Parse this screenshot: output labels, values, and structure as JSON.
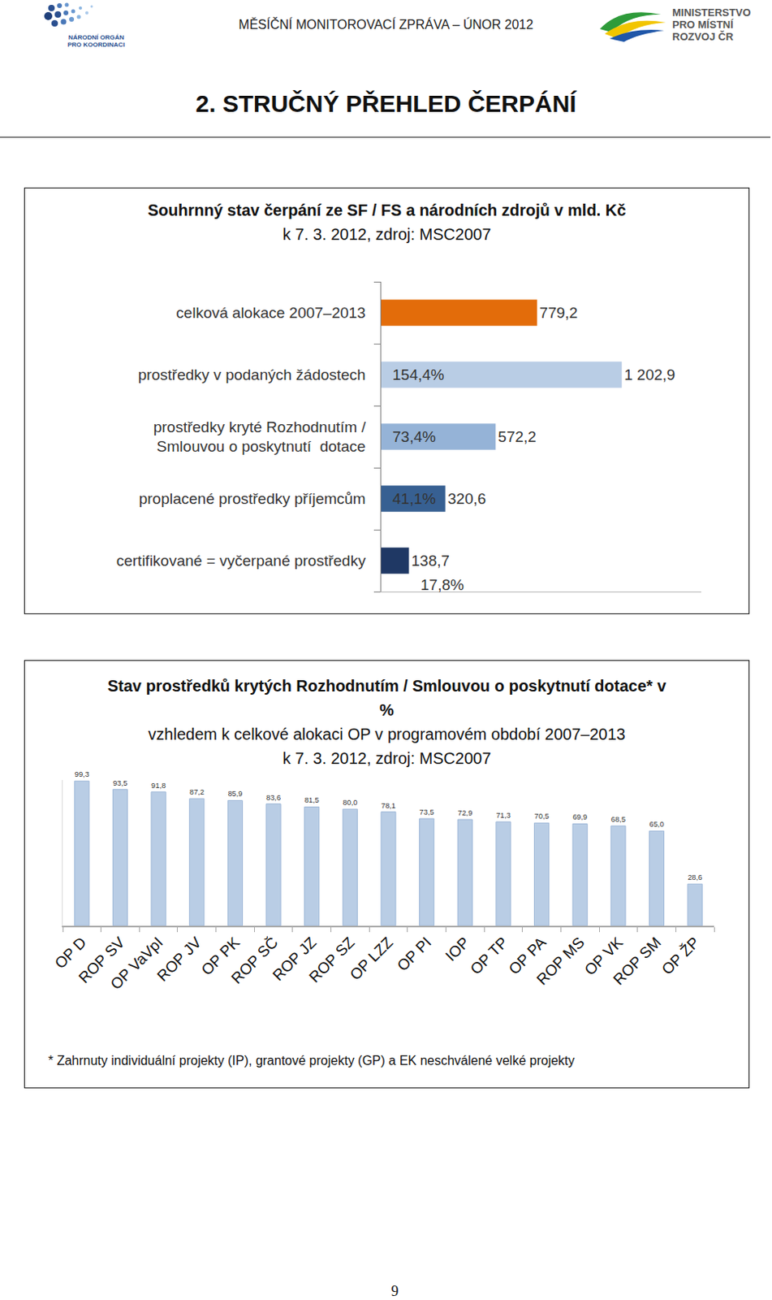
{
  "header": {
    "left_logo": "NÁRODNÍ ORGÁN\nPRO KOORDINACI",
    "title": "MĚSÍČNÍ MONITOROVACÍ ZPRÁVA – ÚNOR 2012",
    "right_logo": "MINISTERSTVO\nPRO MÍSTNÍ\nROZVOJ ČR"
  },
  "heading": "2. STRUČNÝ PŘEHLED ČERPÁNÍ",
  "chart_data": [
    {
      "type": "bar",
      "orientation": "horizontal",
      "title": "Souhrnný stav čerpání ze SF / FS a národních zdrojů v mld. Kč",
      "subtitle": "k 7. 3. 2012, zdroj: MSC2007",
      "categories": [
        "celková alokace 2007–2013",
        "prostředky v podaných žádostech",
        "prostředky kryté Rozhodnutím /\nSmlouvou o poskytnutí  dotace",
        "proplacené prostředky příjemcům",
        "certifikované = vyčerpané prostředky"
      ],
      "values": [
        779.2,
        1202.9,
        572.2,
        320.6,
        138.7
      ],
      "value_labels": [
        "779,2",
        "1 202,9",
        "572,2",
        "320,6",
        "138,7"
      ],
      "share_labels": [
        null,
        "154,4%",
        "73,4%",
        "41,1%",
        "17,8%"
      ],
      "colors": [
        "#E36C0A",
        "#B9CDE5",
        "#95B3D7",
        "#376092",
        "#1F3864"
      ],
      "xlim": [
        0,
        1600
      ],
      "data_labels": true,
      "tick_labels": "y",
      "grid": false
    },
    {
      "type": "bar",
      "title": "Stav prostředků krytých Rozhodnutím / Smlouvou o poskytnutí dotace* v %",
      "subtitle": [
        "vzhledem k celkové alokaci OP v programovém období 2007–2013",
        "k 7. 3. 2012, zdroj: MSC2007"
      ],
      "categories": [
        "OP D",
        "ROP SV",
        "OP VaVpI",
        "ROP JV",
        "OP PK",
        "ROP SČ",
        "ROP JZ",
        "ROP SZ",
        "OP LZZ",
        "OP PI",
        "IOP",
        "OP TP",
        "OP PA",
        "ROP MS",
        "OP VK",
        "ROP SM",
        "OP ŽP"
      ],
      "values": [
        99.3,
        93.5,
        91.8,
        87.2,
        85.9,
        83.6,
        81.5,
        80.0,
        78.1,
        73.5,
        72.9,
        71.3,
        70.5,
        69.9,
        68.5,
        65.0,
        28.6
      ],
      "value_labels": [
        "99,3",
        "93,5",
        "91,8",
        "87,2",
        "85,9",
        "83,6",
        "81,5",
        "80,0",
        "78,1",
        "73,5",
        "72,9",
        "71,3",
        "70,5",
        "69,9",
        "68,5",
        "65,0",
        "28,6"
      ],
      "color": "#B9CDE5",
      "ylim": [
        0,
        100
      ],
      "data_labels": true,
      "tick_labels": "x",
      "grid": false
    }
  ],
  "footnote": "* Zahrnuty individuální projekty (IP), grantové projekty (GP) a EK neschválené velké projekty",
  "page_number": 9
}
